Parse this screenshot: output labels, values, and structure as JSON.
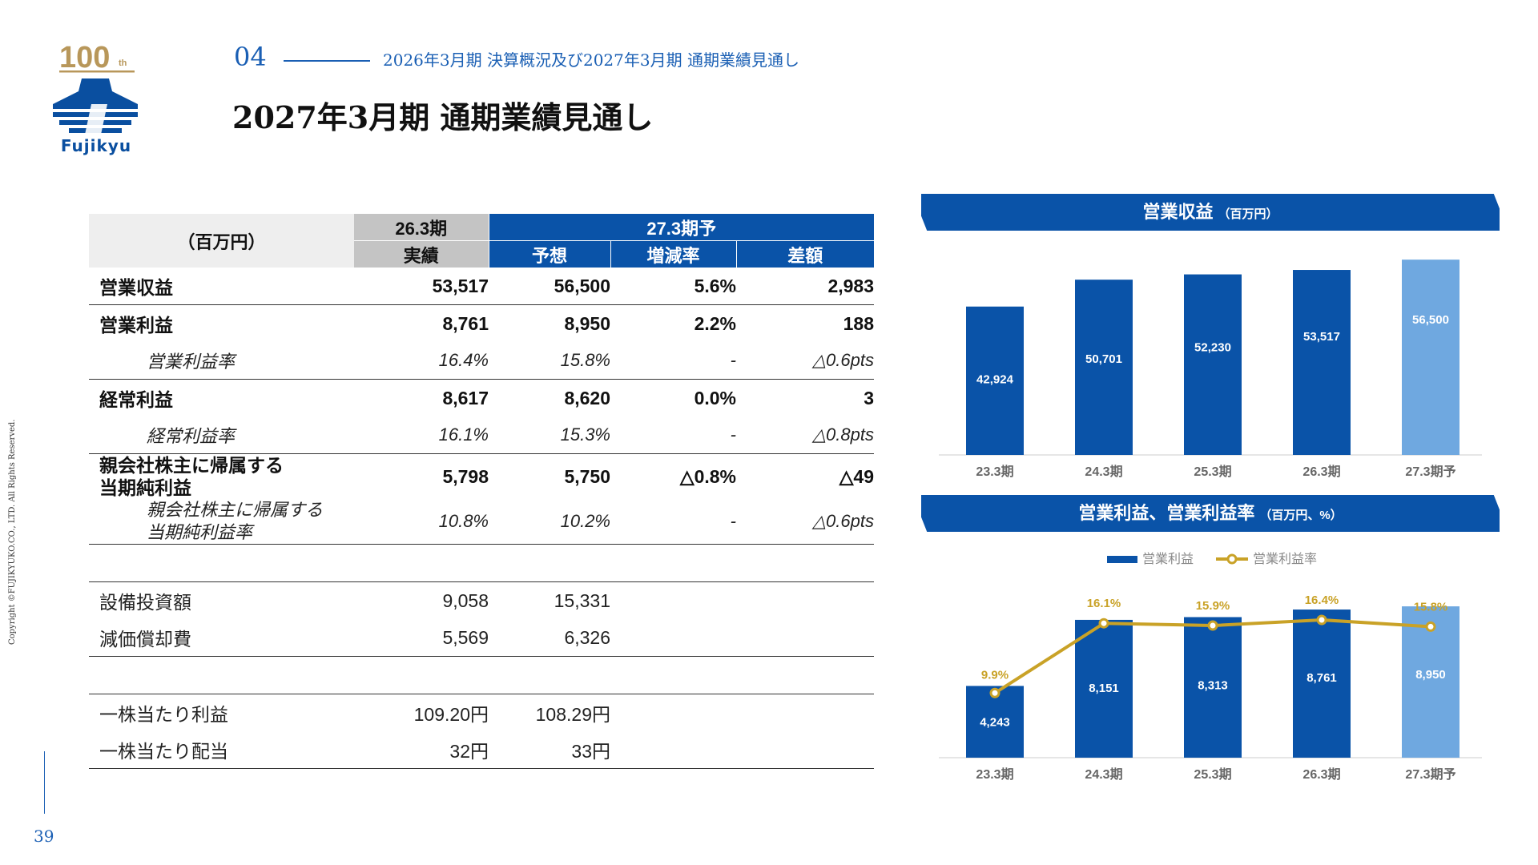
{
  "header": {
    "logo_anniversary": "100",
    "logo_anniversary_suffix": "th",
    "logo_text": "Fujikyu",
    "section_number": "04",
    "section_title": "2026年3月期 決算概況及び2027年3月期 通期業績見通し",
    "page_title": "2027年3月期 通期業績見通し"
  },
  "footer": {
    "copyright": "Copyright ©FUJIKYUKO.CO., LTD. All Rights Reserved.",
    "page_number": "39"
  },
  "colors": {
    "brand_blue": "#0a53a8",
    "forecast_blue": "#6fa8e0",
    "gold": "#c9a227",
    "header_gray": "#c4c4c4"
  },
  "table": {
    "unit_label": "（百万円）",
    "col_actual_period": "26.3期",
    "col_actual_label": "実績",
    "col_forecast_period": "27.3期予",
    "col_forecast_label": "予想",
    "col_change_rate": "増減率",
    "col_difference": "差額",
    "rows": [
      {
        "label": "営業収益",
        "actual": "53,517",
        "forecast": "56,500",
        "rate": "5.6%",
        "diff": "2,983"
      },
      {
        "label": "営業利益",
        "actual": "8,761",
        "forecast": "8,950",
        "rate": "2.2%",
        "diff": "188"
      },
      {
        "label": "営業利益率",
        "actual": "16.4%",
        "forecast": "15.8%",
        "rate": "-",
        "diff": "△0.6pts"
      },
      {
        "label": "経常利益",
        "actual": "8,617",
        "forecast": "8,620",
        "rate": "0.0%",
        "diff": "3"
      },
      {
        "label": "経常利益率",
        "actual": "16.1%",
        "forecast": "15.3%",
        "rate": "-",
        "diff": "△0.8pts"
      },
      {
        "label_line1": "親会社株主に帰属する",
        "label_line2": "当期純利益",
        "actual": "5,798",
        "forecast": "5,750",
        "rate": "△0.8%",
        "diff": "△49"
      },
      {
        "label_line1": "親会社株主に帰属する",
        "label_line2": "当期純利益率",
        "actual": "10.8%",
        "forecast": "10.2%",
        "rate": "-",
        "diff": "△0.6pts"
      },
      {
        "label": "設備投資額",
        "actual": "9,058",
        "forecast": "15,331"
      },
      {
        "label": "減価償却費",
        "actual": "5,569",
        "forecast": "6,326"
      },
      {
        "label": "一株当たり利益",
        "actual": "109.20円",
        "forecast": "108.29円"
      },
      {
        "label": "一株当たり配当",
        "actual": "32円",
        "forecast": "33円"
      }
    ]
  },
  "chart_data": [
    {
      "type": "bar",
      "title": "営業収益",
      "unit": "（百万円）",
      "categories": [
        "23.3期",
        "24.3期",
        "25.3期",
        "26.3期",
        "27.3期予"
      ],
      "values": [
        42924,
        50701,
        52230,
        53517,
        56500
      ],
      "value_labels": [
        "42,924",
        "50,701",
        "52,230",
        "53,517",
        "56,500"
      ],
      "forecast_index": 4,
      "grid": false
    },
    {
      "type": "bar",
      "title": "営業利益、営業利益率",
      "unit": "（百万円、%）",
      "categories": [
        "23.3期",
        "24.3期",
        "25.3期",
        "26.3期",
        "27.3期予"
      ],
      "legend": [
        "営業利益",
        "営業利益率"
      ],
      "legend_position": "top",
      "series": [
        {
          "name": "営業利益",
          "type": "bar",
          "values": [
            4243,
            8151,
            8313,
            8761,
            8950
          ],
          "value_labels": [
            "4,243",
            "8,151",
            "8,313",
            "8,761",
            "8,950"
          ]
        },
        {
          "name": "営業利益率",
          "type": "line",
          "values": [
            9.9,
            16.1,
            15.9,
            16.4,
            15.8
          ],
          "value_labels": [
            "9.9%",
            "16.1%",
            "15.9%",
            "16.4%",
            "15.8%"
          ]
        }
      ],
      "forecast_index": 4,
      "grid": false
    }
  ]
}
